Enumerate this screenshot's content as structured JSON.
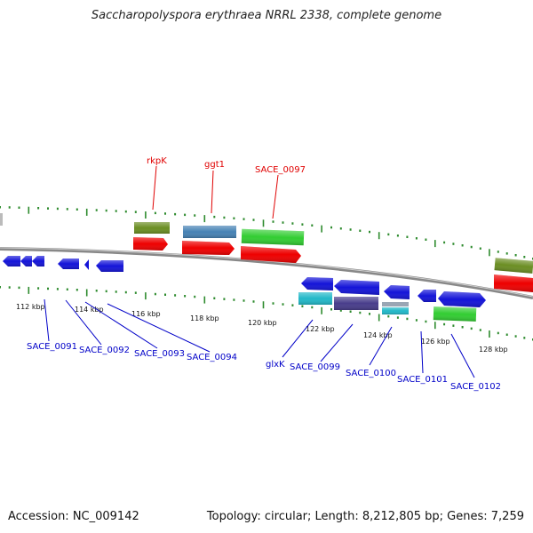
{
  "title": "Saccharopolyspora erythraea NRRL 2338, complete genome",
  "accession": "Accession: NC_009142",
  "topology": "Topology: circular; Length: 8,212,805 bp; Genes: 7,259",
  "colors": {
    "backbone": "#888888",
    "tick": "#2e8b2e",
    "top_label": "#e00000",
    "bottom_label": "#0000c8",
    "cds_red": "#ee0000",
    "cds_blue": "#1414d8",
    "cds_green": "#32cd32",
    "cds_olive": "#6b8e23",
    "cds_steel": "#4682b4",
    "cds_cyan": "#22b8c8",
    "cds_purple": "#483d8b"
  },
  "scale_labels": [
    "112 kbp",
    "114 kbp",
    "116 kbp",
    "118 kbp",
    "120 kbp",
    "122 kbp",
    "124 kbp",
    "126 kbp",
    "128 kbp"
  ],
  "top_gene_labels": [
    "rkpK",
    "ggt1",
    "SACE_0097"
  ],
  "bottom_gene_labels": [
    "SACE_0091",
    "SACE_0092",
    "SACE_0093",
    "SACE_0094",
    "glxK",
    "SACE_0099",
    "SACE_0100",
    "SACE_0101",
    "SACE_0102"
  ]
}
